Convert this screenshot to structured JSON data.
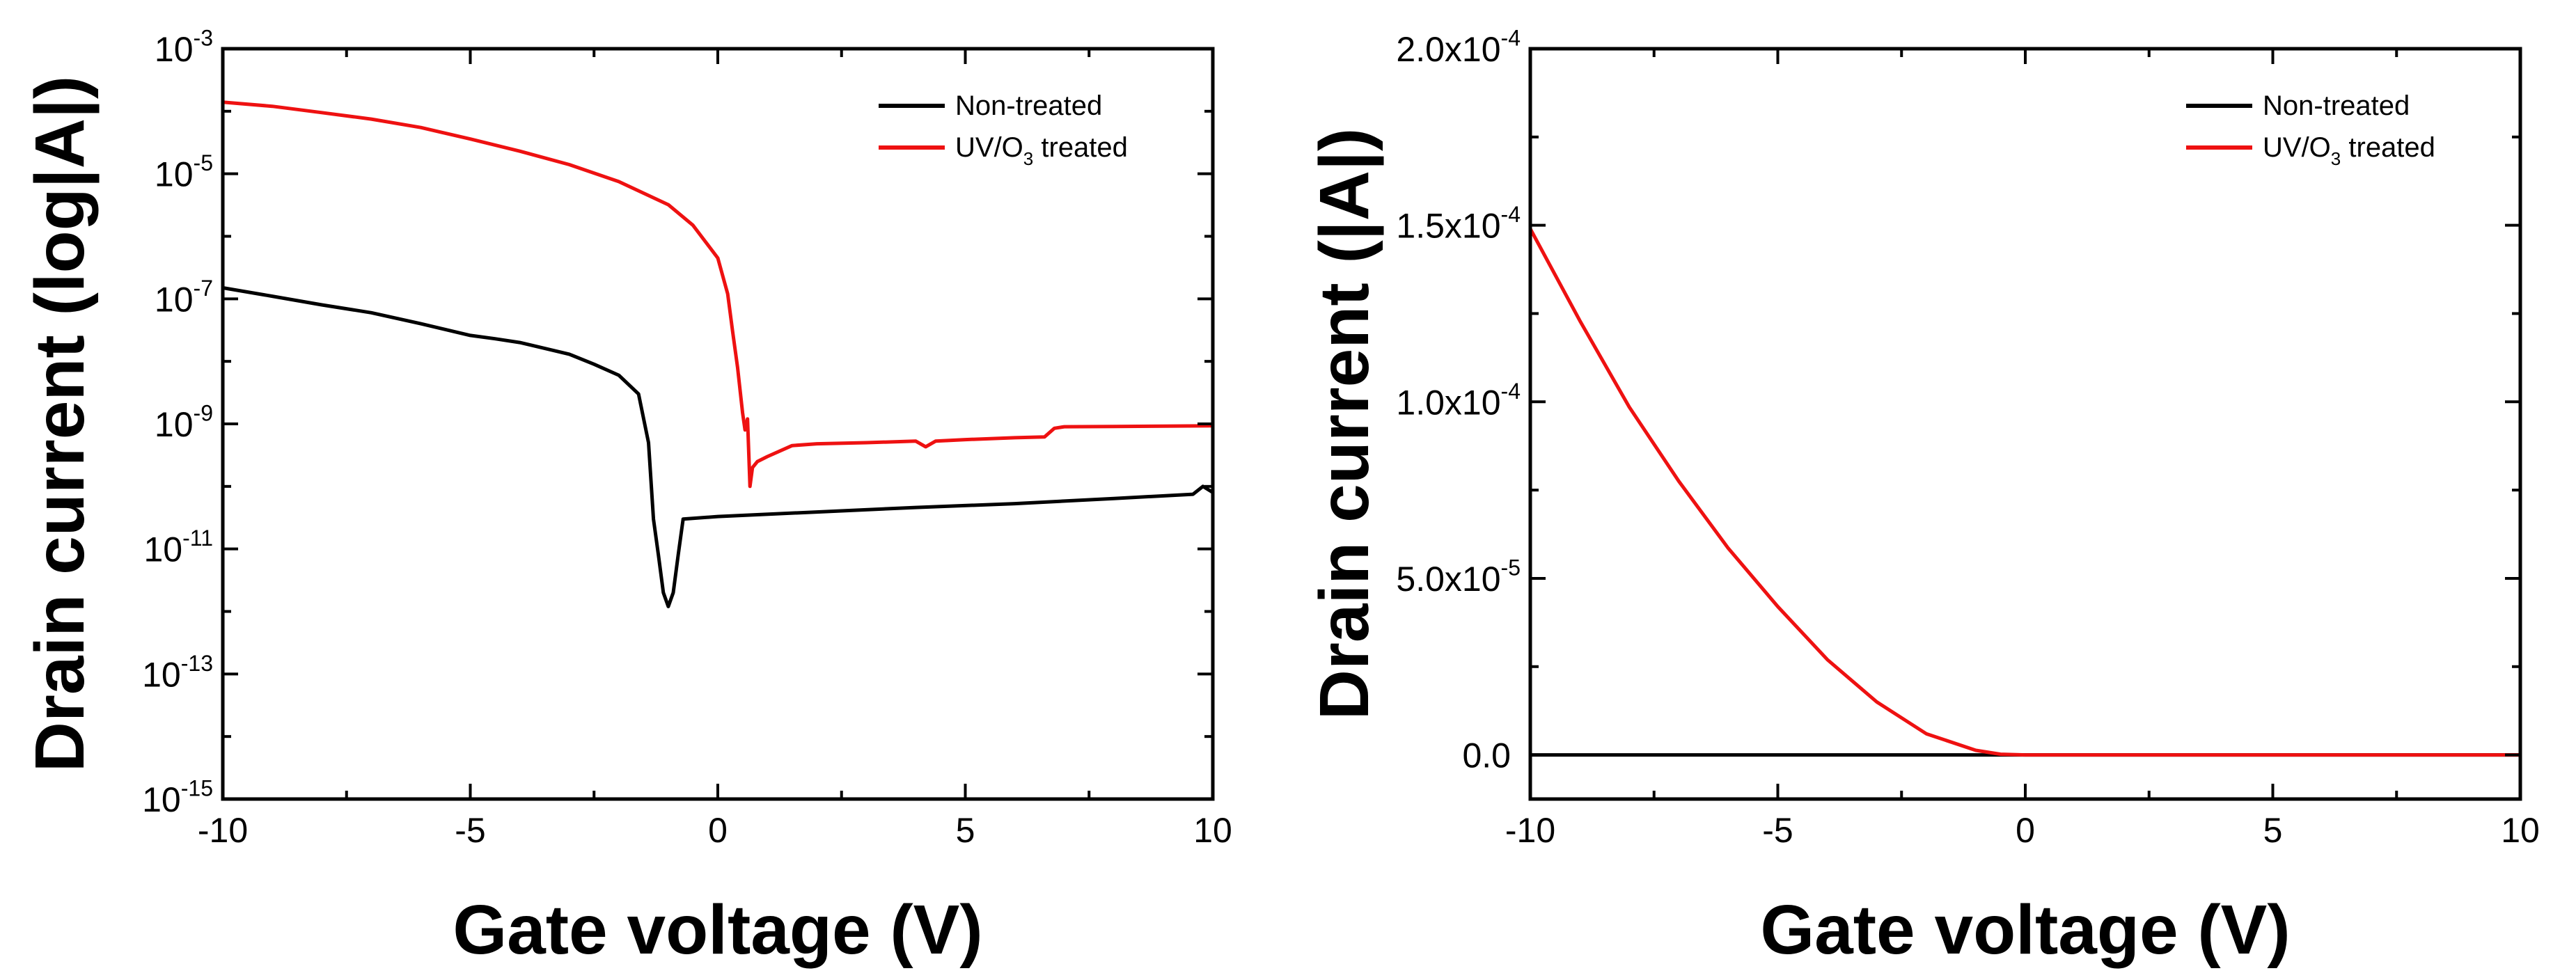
{
  "colors": {
    "non_treated": "#000000",
    "uv_treated": "#ee1111",
    "axis": "#000000"
  },
  "chart_data": [
    {
      "type": "line",
      "yscale": "log",
      "xlabel": "Gate voltage (V)",
      "ylabel": "Drain current (log|A|)",
      "xlim": [
        -10,
        10
      ],
      "ylim": [
        1e-15,
        0.001
      ],
      "x_ticks": [
        -10,
        -5,
        0,
        5,
        10
      ],
      "x_tick_labels": [
        "-10",
        "-5",
        "0",
        "5",
        "10"
      ],
      "y_ticks": [
        {
          "base": "10",
          "exp": "-3"
        },
        {
          "base": "10",
          "exp": "-5"
        },
        {
          "base": "10",
          "exp": "-7"
        },
        {
          "base": "10",
          "exp": "-9"
        },
        {
          "base": "10",
          "exp": "-11"
        },
        {
          "base": "10",
          "exp": "-13"
        },
        {
          "base": "10",
          "exp": "-15"
        }
      ],
      "legend": {
        "position": "top-right"
      },
      "series": [
        {
          "name": "Non-treated",
          "color_key": "non_treated",
          "x": [
            -10,
            -9,
            -8,
            -7,
            -6,
            -5,
            -4.5,
            -4,
            -3,
            -2.5,
            -2,
            -1.6,
            -1.4,
            -1.3,
            -1.2,
            -1.1,
            -1.0,
            -0.9,
            -0.8,
            -0.7,
            0,
            2,
            4,
            6,
            8,
            9.6,
            9.8,
            10
          ],
          "y": [
            1.5e-07,
            1.1e-07,
            8e-08,
            6e-08,
            4e-08,
            2.6e-08,
            2.3e-08,
            2e-08,
            1.3e-08,
            9e-09,
            6e-09,
            3e-09,
            5e-10,
            3e-11,
            8e-12,
            2e-12,
            1.2e-12,
            2e-12,
            8e-12,
            3e-11,
            3.3e-11,
            3.9e-11,
            4.6e-11,
            5.3e-11,
            6.4e-11,
            7.5e-11,
            1e-10,
            8e-11
          ]
        },
        {
          "name": "UV/O3 treated",
          "legend_main": "UV/O",
          "legend_sub": "3",
          "legend_tail": " treated",
          "color_key": "uv_treated",
          "x": [
            -10,
            -9,
            -8,
            -7,
            -6,
            -5,
            -4,
            -3,
            -2,
            -1,
            -0.5,
            0,
            0.2,
            0.3,
            0.4,
            0.5,
            0.55,
            0.6,
            0.65,
            0.7,
            0.8,
            1.0,
            1.5,
            2,
            3,
            4,
            4.2,
            4.4,
            5,
            6,
            6.6,
            6.8,
            7,
            8,
            9,
            10
          ],
          "y": [
            0.00014,
            0.00012,
            9.5e-05,
            7.5e-05,
            5.5e-05,
            3.6e-05,
            2.3e-05,
            1.4e-05,
            7.5e-06,
            3.2e-06,
            1.5e-06,
            4.5e-07,
            1.2e-07,
            3e-08,
            8e-09,
            1.5e-09,
            8e-10,
            1.2e-09,
            1e-10,
            2e-10,
            2.5e-10,
            3e-10,
            4.5e-10,
            4.8e-10,
            5e-10,
            5.3e-10,
            4.3e-10,
            5.3e-10,
            5.6e-10,
            6e-10,
            6.2e-10,
            8.5e-10,
            9e-10,
            9.1e-10,
            9.2e-10,
            9.3e-10
          ]
        }
      ]
    },
    {
      "type": "line",
      "yscale": "linear",
      "xlabel": "Gate voltage (V)",
      "ylabel": "Drain current (|A|)",
      "xlim": [
        -10,
        10
      ],
      "ylim": [
        -1.25e-05,
        0.0002
      ],
      "x_ticks": [
        -10,
        -5,
        0,
        5,
        10
      ],
      "x_tick_labels": [
        "-10",
        "-5",
        "0",
        "5",
        "10"
      ],
      "y_ticks": [
        {
          "value": 0,
          "label": "0.0"
        },
        {
          "value": 5e-05,
          "mant": "5.0x10",
          "exp": "-5"
        },
        {
          "value": 0.0001,
          "mant": "1.0x10",
          "exp": "-4"
        },
        {
          "value": 0.00015,
          "mant": "1.5x10",
          "exp": "-4"
        },
        {
          "value": 0.0002,
          "mant": "2.0x10",
          "exp": "-4"
        }
      ],
      "legend": {
        "position": "top-right"
      },
      "series": [
        {
          "name": "Non-treated",
          "color_key": "non_treated",
          "x": [
            -10,
            10
          ],
          "y": [
            0,
            0
          ]
        },
        {
          "name": "UV/O3 treated",
          "legend_main": "UV/O",
          "legend_sub": "3",
          "legend_tail": " treated",
          "color_key": "uv_treated",
          "x": [
            -10,
            -9,
            -8,
            -7,
            -6,
            -5,
            -4,
            -3,
            -2,
            -1,
            -0.5,
            0,
            10
          ],
          "y": [
            0.000149,
            0.000123,
            9.85e-05,
            7.75e-05,
            5.85e-05,
            4.2e-05,
            2.7e-05,
            1.5e-05,
            6e-06,
            1.3e-06,
            2e-07,
            0,
            0
          ]
        }
      ]
    }
  ]
}
